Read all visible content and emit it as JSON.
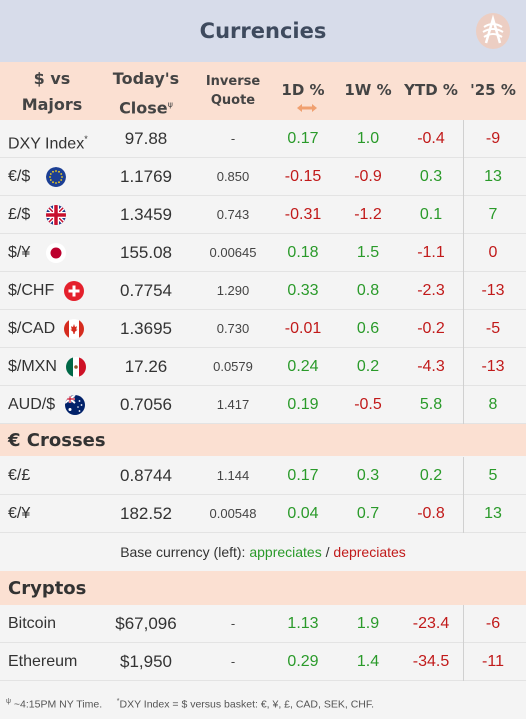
{
  "title": "Currencies",
  "headers": {
    "col1_line1": "$ vs",
    "col1_line2": "Majors",
    "col2_line1": "Today's",
    "col2_line2": "Close",
    "col2_sup": "ψ",
    "col3_line1": "Inverse",
    "col3_line2": "Quote",
    "d1": "1D %",
    "w1": "1W %",
    "ytd": "YTD %",
    "y25": "'25 %"
  },
  "majors": [
    {
      "name": "DXY Index",
      "sup": "*",
      "flag": "",
      "close": "97.88",
      "inverse": "-",
      "d1": "0.17",
      "w1": "1.0",
      "ytd": "-0.4",
      "y25": "-9"
    },
    {
      "name": "€/$",
      "sup": "",
      "flag": "eu-flag-icon",
      "close": "1.1769",
      "inverse": "0.850",
      "d1": "-0.15",
      "w1": "-0.9",
      "ytd": "0.3",
      "y25": "13"
    },
    {
      "name": "£/$",
      "sup": "",
      "flag": "uk-flag-icon",
      "close": "1.3459",
      "inverse": "0.743",
      "d1": "-0.31",
      "w1": "-1.2",
      "ytd": "0.1",
      "y25": "7"
    },
    {
      "name": "$/¥",
      "sup": "",
      "flag": "japan-flag-icon",
      "close": "155.08",
      "inverse": "0.00645",
      "d1": "0.18",
      "w1": "1.5",
      "ytd": "-1.1",
      "y25": "0"
    },
    {
      "name": "$/CHF",
      "sup": "",
      "flag": "swiss-flag-icon",
      "close": "0.7754",
      "inverse": "1.290",
      "d1": "0.33",
      "w1": "0.8",
      "ytd": "-2.3",
      "y25": "-13"
    },
    {
      "name": "$/CAD",
      "sup": "",
      "flag": "canada-flag-icon",
      "close": "1.3695",
      "inverse": "0.730",
      "d1": "-0.01",
      "w1": "0.6",
      "ytd": "-0.2",
      "y25": "-5"
    },
    {
      "name": "$/MXN",
      "sup": "",
      "flag": "mexico-flag-icon",
      "close": "17.26",
      "inverse": "0.0579",
      "d1": "0.24",
      "w1": "0.2",
      "ytd": "-4.3",
      "y25": "-13"
    },
    {
      "name": "AUD/$",
      "sup": "",
      "flag": "australia-flag-icon",
      "close": "0.7056",
      "inverse": "1.417",
      "d1": "0.19",
      "w1": "-0.5",
      "ytd": "5.8",
      "y25": "8"
    }
  ],
  "crosses_title": "€ Crosses",
  "crosses": [
    {
      "name": "€/£",
      "close": "0.8744",
      "inverse": "1.144",
      "d1": "0.17",
      "w1": "0.3",
      "ytd": "0.2",
      "y25": "5"
    },
    {
      "name": "€/¥",
      "close": "182.52",
      "inverse": "0.00548",
      "d1": "0.04",
      "w1": "0.7",
      "ytd": "-0.8",
      "y25": "13"
    }
  ],
  "legend": {
    "prefix": "Base currency (left):",
    "appreciates": "appreciates",
    "sep": "/",
    "depreciates": "depreciates"
  },
  "cryptos_title": "Cryptos",
  "cryptos": [
    {
      "name": "Bitcoin",
      "close": "$67,096",
      "inverse": "-",
      "d1": "1.13",
      "w1": "1.9",
      "ytd": "-23.4",
      "y25": "-6"
    },
    {
      "name": "Ethereum",
      "close": "$1,950",
      "inverse": "-",
      "d1": "0.29",
      "w1": "1.4",
      "ytd": "-34.5",
      "y25": "-11"
    }
  ],
  "footnote": {
    "psi_mark": "ψ",
    "psi_text": "~4:15PM NY Time.",
    "star_mark": "*",
    "star_text": "DXY Index = $ versus basket: €, ¥, £, CAD, SEK, CHF."
  },
  "colors": {
    "positive": "#2a9a2a",
    "negative": "#c11a1a",
    "header_bg": "#fbe0d2",
    "title_bg": "#d7dcea"
  }
}
